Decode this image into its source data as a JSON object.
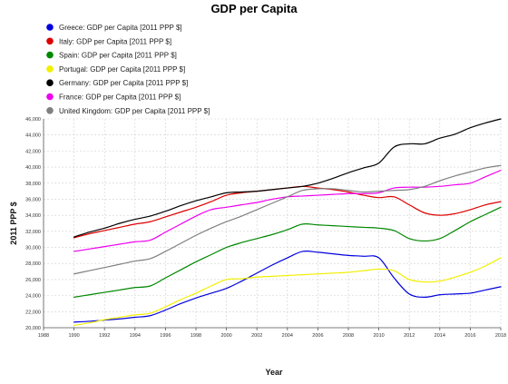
{
  "chart_data": {
    "type": "line",
    "title": "GDP per Capita",
    "xlabel": "Year",
    "ylabel": "2011 PPP $",
    "xlim": [
      1988,
      2018
    ],
    "ylim": [
      20000,
      46000
    ],
    "x_ticks": [
      "1988",
      "1990",
      "1992",
      "1994",
      "1996",
      "1998",
      "2000",
      "2002",
      "2004",
      "2006",
      "2008",
      "2010",
      "2012",
      "2014",
      "2016",
      "2018"
    ],
    "y_ticks": [
      "20,000",
      "22,000",
      "24,000",
      "26,000",
      "28,000",
      "30,000",
      "32,000",
      "34,000",
      "36,000",
      "38,000",
      "40,000",
      "42,000",
      "44,000",
      "46,000"
    ],
    "grid": true,
    "legend_position": "top-left",
    "x": [
      1990,
      1991,
      1992,
      1993,
      1994,
      1995,
      1996,
      1997,
      1998,
      1999,
      2000,
      2001,
      2002,
      2003,
      2004,
      2005,
      2006,
      2007,
      2008,
      2009,
      2010,
      2011,
      2012,
      2013,
      2014,
      2015,
      2016,
      2017,
      2018
    ],
    "series": [
      {
        "name": "Greece: GDP per Capita [2011 PPP $]",
        "color": "#0000dd",
        "values": [
          20700,
          20800,
          20950,
          21100,
          21300,
          21500,
          22200,
          23000,
          23700,
          24300,
          24900,
          25800,
          26800,
          27800,
          28700,
          29500,
          29400,
          29200,
          29000,
          28900,
          28700,
          26200,
          24200,
          23800,
          24100,
          24200,
          24300,
          24700,
          25100
        ]
      },
      {
        "name": "Italy: GDP per Capita [2011 PPP $]",
        "color": "#dd0000",
        "values": [
          31200,
          31700,
          32100,
          32500,
          32900,
          33200,
          33800,
          34400,
          35000,
          35700,
          36500,
          36800,
          37000,
          37200,
          37400,
          37600,
          37400,
          37200,
          36900,
          36500,
          36200,
          36300,
          35300,
          34300,
          34000,
          34200,
          34700,
          35300,
          35700
        ]
      },
      {
        "name": "Spain: GDP per Capita [2011 PPP $]",
        "color": "#008800",
        "values": [
          23800,
          24100,
          24400,
          24700,
          25000,
          25200,
          26200,
          27200,
          28200,
          29100,
          30000,
          30600,
          31100,
          31600,
          32200,
          32900,
          32800,
          32700,
          32600,
          32500,
          32400,
          32100,
          31100,
          30800,
          31100,
          32100,
          33200,
          34100,
          35000
        ]
      },
      {
        "name": "Portugal: GDP per Capita [2011 PPP $]",
        "color": "#f2ef00",
        "values": [
          20300,
          20600,
          21000,
          21300,
          21600,
          21800,
          22600,
          23500,
          24300,
          25200,
          26000,
          26100,
          26300,
          26400,
          26500,
          26600,
          26700,
          26800,
          26900,
          27100,
          27300,
          27100,
          26000,
          25700,
          25800,
          26300,
          26900,
          27700,
          28700
        ]
      },
      {
        "name": "Germany: GDP per Capita [2011 PPP $]",
        "color": "#000000",
        "values": [
          31300,
          31900,
          32400,
          33000,
          33500,
          33900,
          34500,
          35200,
          35800,
          36300,
          36800,
          36900,
          37000,
          37200,
          37400,
          37600,
          38000,
          38600,
          39300,
          39900,
          40500,
          42500,
          42900,
          42900,
          43600,
          44100,
          44900,
          45500,
          46000
        ]
      },
      {
        "name": "France: GDP per Capita [2011 PPP $]",
        "color": "#ee00ee",
        "values": [
          29500,
          29800,
          30100,
          30400,
          30700,
          30900,
          31900,
          32900,
          33900,
          34700,
          35000,
          35300,
          35600,
          36000,
          36300,
          36400,
          36500,
          36600,
          36700,
          36700,
          36800,
          37400,
          37500,
          37500,
          37600,
          37800,
          38000,
          38800,
          39600
        ]
      },
      {
        "name": "United Kingdom: GDP per Capita [2011 PPP $]",
        "color": "#808080",
        "values": [
          26700,
          27100,
          27500,
          27900,
          28300,
          28600,
          29500,
          30500,
          31500,
          32400,
          33200,
          33900,
          34700,
          35500,
          36300,
          37100,
          37300,
          37300,
          37100,
          36900,
          37000,
          37100,
          37200,
          37600,
          38300,
          38900,
          39400,
          39900,
          40200
        ]
      }
    ]
  }
}
